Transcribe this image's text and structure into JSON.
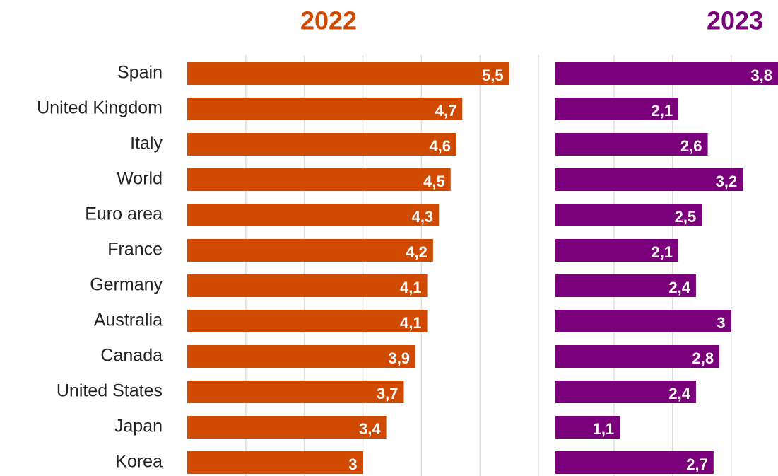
{
  "chart_data": [
    {
      "type": "barh",
      "title": "2022",
      "color": "#d04a02",
      "categories": [
        "Spain",
        "United Kingdom",
        "Italy",
        "World",
        "Euro area",
        "France",
        "Germany",
        "Australia",
        "Canada",
        "United States",
        "Japan",
        "Korea"
      ],
      "values": [
        5.5,
        4.7,
        4.6,
        4.5,
        4.3,
        4.2,
        4.1,
        4.1,
        3.9,
        3.7,
        3.4,
        3
      ],
      "value_labels": [
        "5,5",
        "4,7",
        "4,6",
        "4,5",
        "4,3",
        "4,2",
        "4,1",
        "4,1",
        "3,9",
        "3,7",
        "3,4",
        "3"
      ],
      "xlim": [
        0,
        6
      ],
      "xticks": [
        1,
        2,
        3,
        4,
        5
      ],
      "grid": true
    },
    {
      "type": "barh",
      "title": "2023",
      "color": "#7b007b",
      "values": [
        3.8,
        2.1,
        2.6,
        3.2,
        2.5,
        2.1,
        2.4,
        3,
        2.8,
        2.4,
        1.1,
        2.7
      ],
      "value_labels": [
        "3,8",
        "2,1",
        "2,6",
        "3,2",
        "2,5",
        "2,1",
        "2,4",
        "3",
        "2,8",
        "2,4",
        "1,1",
        "2,7"
      ],
      "xlim": [
        0,
        3.8
      ],
      "xticks": [
        1,
        2,
        3
      ],
      "grid": true
    }
  ]
}
